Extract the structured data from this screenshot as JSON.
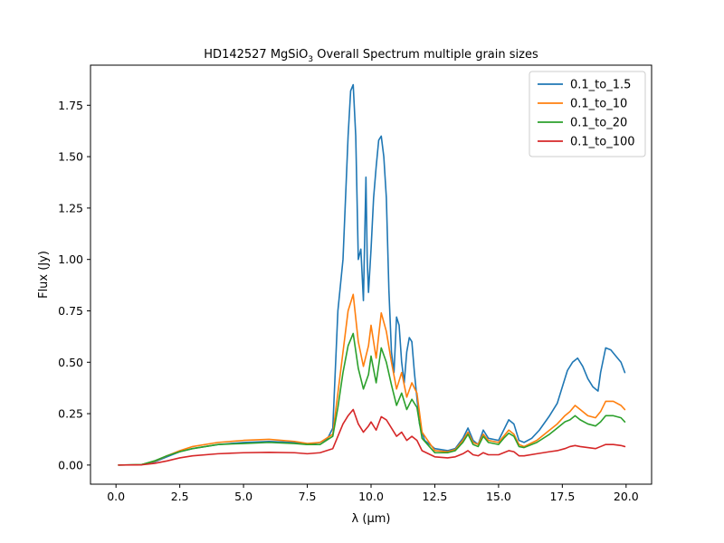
{
  "chart_data": {
    "type": "line",
    "title_main": "HD142527 MgSiO",
    "title_sub": "3",
    "title_rest": " Overall Spectrum multiple grain sizes",
    "xlabel": "λ (μm)",
    "ylabel": "Flux (Jy)",
    "xlim": [
      -1.0,
      21.0
    ],
    "ylim": [
      -0.093,
      1.945
    ],
    "xticks": [
      0.0,
      2.5,
      5.0,
      7.5,
      10.0,
      12.5,
      15.0,
      17.5,
      20.0
    ],
    "xtick_labels": [
      "0.0",
      "2.5",
      "5.0",
      "7.5",
      "10.0",
      "12.5",
      "15.0",
      "17.5",
      "20.0"
    ],
    "yticks": [
      0.0,
      0.25,
      0.5,
      0.75,
      1.0,
      1.25,
      1.5,
      1.75
    ],
    "ytick_labels": [
      "0.00",
      "0.25",
      "0.50",
      "0.75",
      "1.00",
      "1.25",
      "1.50",
      "1.75"
    ],
    "grid": false,
    "legend_position": "top-right",
    "series": [
      {
        "name": "0.1_to_1.5",
        "color": "#1f77b4",
        "x": [
          0.1,
          1.0,
          1.5,
          2.0,
          2.5,
          3.0,
          4.0,
          5.0,
          6.0,
          7.0,
          7.5,
          8.0,
          8.3,
          8.5,
          8.7,
          8.9,
          9.0,
          9.1,
          9.2,
          9.3,
          9.4,
          9.5,
          9.6,
          9.7,
          9.8,
          9.85,
          9.9,
          10.0,
          10.1,
          10.2,
          10.3,
          10.4,
          10.5,
          10.6,
          10.7,
          10.8,
          10.9,
          11.0,
          11.1,
          11.2,
          11.3,
          11.4,
          11.5,
          11.6,
          11.7,
          11.9,
          12.1,
          12.5,
          13.0,
          13.3,
          13.6,
          13.8,
          14.0,
          14.2,
          14.4,
          14.6,
          15.0,
          15.2,
          15.4,
          15.6,
          15.8,
          16.0,
          16.3,
          16.6,
          17.0,
          17.3,
          17.5,
          17.7,
          17.9,
          18.1,
          18.3,
          18.5,
          18.7,
          18.9,
          19.0,
          19.2,
          19.4,
          19.6,
          19.8,
          19.95
        ],
        "y": [
          0.0,
          0.002,
          0.015,
          0.04,
          0.065,
          0.08,
          0.1,
          0.11,
          0.115,
          0.11,
          0.1,
          0.11,
          0.13,
          0.18,
          0.75,
          1.0,
          1.3,
          1.6,
          1.82,
          1.85,
          1.6,
          1.0,
          1.05,
          0.8,
          1.4,
          1.0,
          0.84,
          1.05,
          1.3,
          1.45,
          1.58,
          1.6,
          1.5,
          1.3,
          0.85,
          0.55,
          0.45,
          0.72,
          0.68,
          0.5,
          0.4,
          0.55,
          0.62,
          0.6,
          0.45,
          0.2,
          0.12,
          0.08,
          0.07,
          0.08,
          0.13,
          0.18,
          0.12,
          0.1,
          0.17,
          0.13,
          0.12,
          0.17,
          0.22,
          0.2,
          0.12,
          0.11,
          0.13,
          0.17,
          0.24,
          0.3,
          0.38,
          0.46,
          0.5,
          0.52,
          0.48,
          0.42,
          0.38,
          0.36,
          0.45,
          0.57,
          0.56,
          0.53,
          0.5,
          0.45
        ]
      },
      {
        "name": "0.1_to_10",
        "color": "#ff7f0e",
        "x": [
          0.1,
          1.0,
          1.5,
          2.0,
          2.5,
          3.0,
          4.0,
          5.0,
          6.0,
          7.0,
          7.5,
          8.0,
          8.5,
          8.7,
          8.9,
          9.1,
          9.3,
          9.5,
          9.7,
          9.9,
          10.0,
          10.2,
          10.4,
          10.6,
          10.8,
          11.0,
          11.2,
          11.4,
          11.6,
          11.8,
          12.0,
          12.5,
          13.0,
          13.3,
          13.6,
          13.8,
          14.0,
          14.2,
          14.4,
          14.6,
          15.0,
          15.2,
          15.4,
          15.6,
          15.8,
          16.0,
          16.5,
          17.0,
          17.3,
          17.6,
          17.8,
          18.0,
          18.2,
          18.5,
          18.8,
          19.0,
          19.2,
          19.5,
          19.8,
          19.95
        ],
        "y": [
          0.0,
          0.002,
          0.018,
          0.045,
          0.07,
          0.09,
          0.11,
          0.12,
          0.125,
          0.115,
          0.105,
          0.11,
          0.15,
          0.35,
          0.55,
          0.75,
          0.83,
          0.6,
          0.48,
          0.58,
          0.68,
          0.52,
          0.74,
          0.65,
          0.5,
          0.37,
          0.45,
          0.33,
          0.4,
          0.35,
          0.16,
          0.07,
          0.065,
          0.075,
          0.12,
          0.16,
          0.11,
          0.1,
          0.15,
          0.12,
          0.11,
          0.14,
          0.17,
          0.15,
          0.1,
          0.09,
          0.12,
          0.17,
          0.2,
          0.24,
          0.26,
          0.29,
          0.27,
          0.24,
          0.23,
          0.26,
          0.31,
          0.31,
          0.29,
          0.27
        ]
      },
      {
        "name": "0.1_to_20",
        "color": "#2ca02c",
        "x": [
          0.1,
          1.0,
          1.5,
          2.0,
          2.5,
          3.0,
          4.0,
          5.0,
          6.0,
          7.0,
          7.5,
          8.0,
          8.5,
          8.7,
          8.9,
          9.1,
          9.3,
          9.5,
          9.7,
          9.9,
          10.0,
          10.2,
          10.4,
          10.6,
          10.8,
          11.0,
          11.2,
          11.4,
          11.6,
          11.8,
          12.0,
          12.5,
          13.0,
          13.3,
          13.6,
          13.8,
          14.0,
          14.2,
          14.4,
          14.6,
          15.0,
          15.2,
          15.4,
          15.6,
          15.8,
          16.0,
          16.5,
          17.0,
          17.3,
          17.6,
          17.8,
          18.0,
          18.2,
          18.5,
          18.8,
          19.0,
          19.2,
          19.5,
          19.8,
          19.95
        ],
        "y": [
          0.0,
          0.002,
          0.02,
          0.045,
          0.065,
          0.08,
          0.1,
          0.105,
          0.11,
          0.105,
          0.1,
          0.1,
          0.14,
          0.28,
          0.45,
          0.58,
          0.64,
          0.47,
          0.37,
          0.44,
          0.53,
          0.4,
          0.57,
          0.5,
          0.39,
          0.29,
          0.35,
          0.27,
          0.32,
          0.28,
          0.13,
          0.06,
          0.06,
          0.07,
          0.11,
          0.15,
          0.1,
          0.09,
          0.14,
          0.11,
          0.1,
          0.13,
          0.155,
          0.14,
          0.09,
          0.085,
          0.11,
          0.15,
          0.18,
          0.21,
          0.22,
          0.24,
          0.22,
          0.2,
          0.19,
          0.21,
          0.24,
          0.24,
          0.23,
          0.21
        ]
      },
      {
        "name": "0.1_to_100",
        "color": "#d62728",
        "x": [
          0.1,
          1.0,
          1.5,
          2.0,
          2.5,
          3.0,
          4.0,
          5.0,
          6.0,
          7.0,
          7.5,
          8.0,
          8.5,
          8.7,
          8.9,
          9.1,
          9.3,
          9.5,
          9.7,
          9.9,
          10.0,
          10.2,
          10.4,
          10.6,
          10.8,
          11.0,
          11.2,
          11.4,
          11.6,
          11.8,
          12.0,
          12.5,
          13.0,
          13.3,
          13.6,
          13.8,
          14.0,
          14.2,
          14.4,
          14.6,
          15.0,
          15.2,
          15.4,
          15.6,
          15.8,
          16.0,
          16.5,
          17.0,
          17.3,
          17.6,
          17.8,
          18.0,
          18.2,
          18.5,
          18.8,
          19.0,
          19.2,
          19.5,
          19.8,
          19.95
        ],
        "y": [
          0.0,
          0.001,
          0.008,
          0.02,
          0.035,
          0.045,
          0.055,
          0.06,
          0.062,
          0.06,
          0.055,
          0.06,
          0.08,
          0.14,
          0.2,
          0.24,
          0.27,
          0.2,
          0.16,
          0.19,
          0.21,
          0.17,
          0.235,
          0.22,
          0.18,
          0.14,
          0.16,
          0.12,
          0.14,
          0.12,
          0.07,
          0.04,
          0.035,
          0.04,
          0.055,
          0.07,
          0.05,
          0.045,
          0.06,
          0.05,
          0.05,
          0.06,
          0.07,
          0.065,
          0.045,
          0.045,
          0.055,
          0.065,
          0.07,
          0.08,
          0.09,
          0.095,
          0.09,
          0.085,
          0.08,
          0.09,
          0.1,
          0.1,
          0.095,
          0.09
        ]
      }
    ]
  }
}
